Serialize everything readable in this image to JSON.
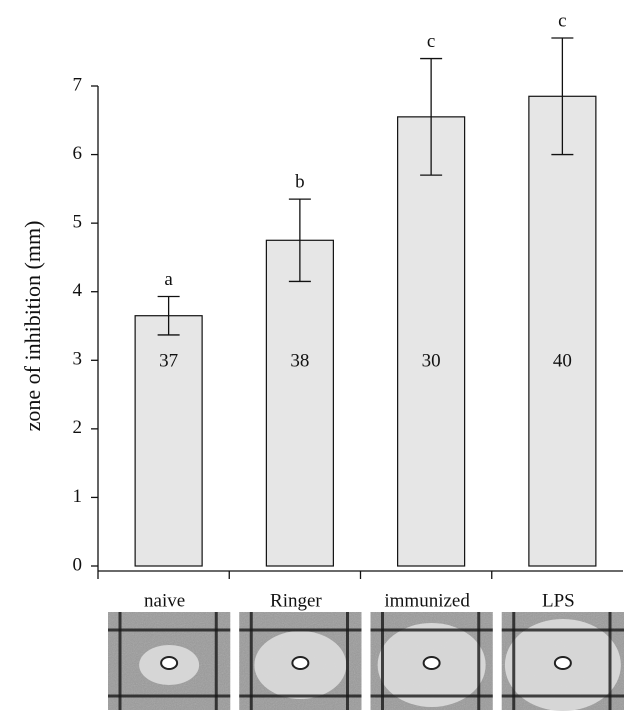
{
  "chart_data": {
    "type": "bar",
    "ylabel": "zone of inhibition (mm)",
    "categories": [
      "naive",
      "Ringer",
      "immunized",
      "LPS"
    ],
    "values": [
      3.65,
      4.75,
      6.55,
      6.85
    ],
    "errors": [
      0.28,
      0.6,
      0.85,
      0.85
    ],
    "annotations": [
      "a",
      "b",
      "c",
      "c"
    ],
    "sample_sizes": [
      37,
      38,
      30,
      40
    ],
    "color": "#e6e6e6",
    "ylim": [
      0,
      7
    ],
    "yticks": [
      0,
      1,
      2,
      3,
      4,
      5,
      6,
      7
    ]
  }
}
